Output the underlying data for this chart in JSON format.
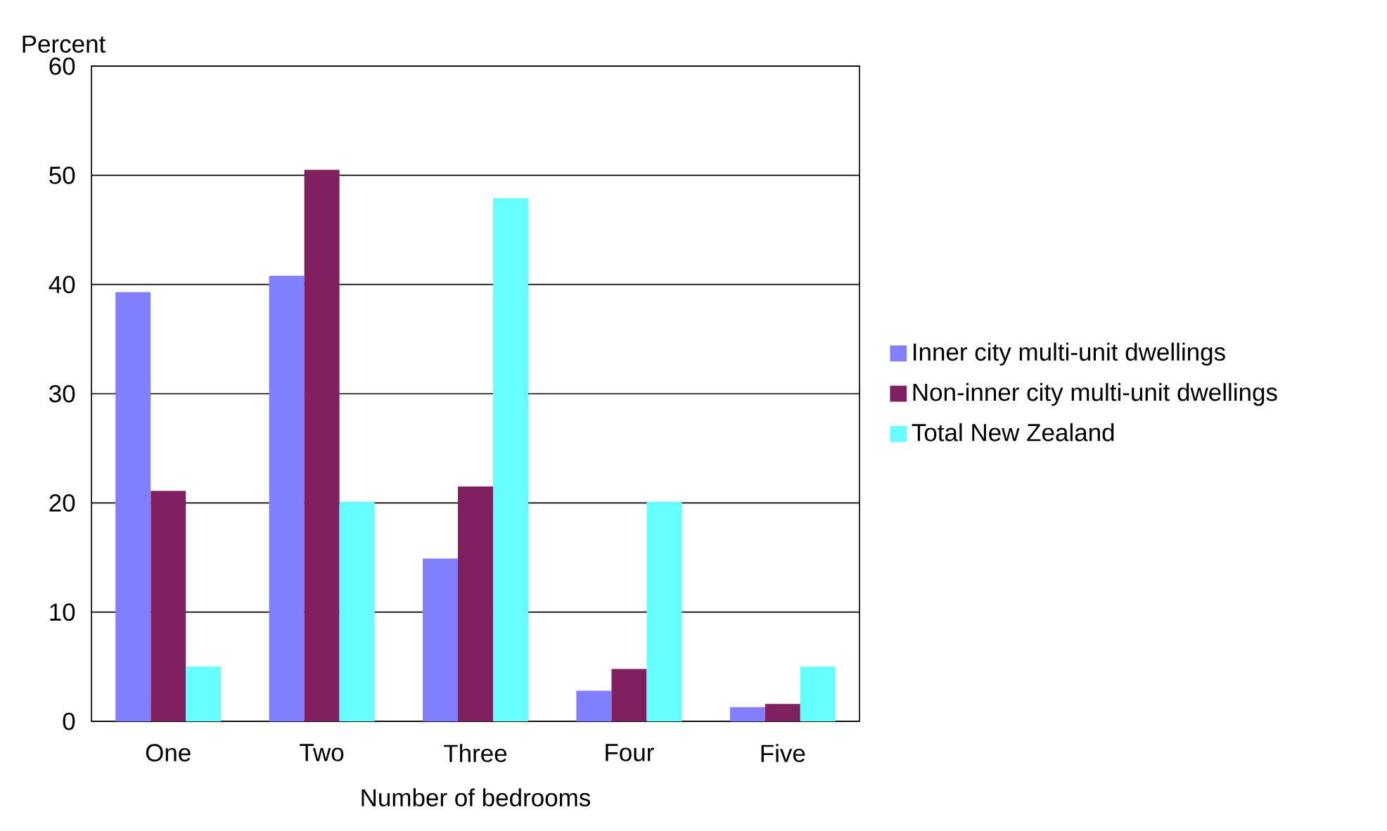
{
  "chart_data": {
    "type": "bar",
    "xlabel": "Number of bedrooms",
    "ylabel": "Percent",
    "categories": [
      "One",
      "Two",
      "Three",
      "Four",
      "Five"
    ],
    "series": [
      {
        "name": "Inner city multi-unit dwellings",
        "color": "#8080ff",
        "values": [
          39.3,
          40.8,
          14.9,
          2.8,
          1.3
        ]
      },
      {
        "name": "Non-inner city multi-unit dwellings",
        "color": "#802060",
        "values": [
          21.1,
          50.5,
          21.5,
          4.8,
          1.6
        ]
      },
      {
        "name": "Total New Zealand",
        "color": "#66ffff",
        "values": [
          5.0,
          20.1,
          47.9,
          20.1,
          5.0
        ]
      }
    ],
    "ylim": [
      0,
      60
    ],
    "yticks": [
      0,
      10,
      20,
      30,
      40,
      50,
      60
    ],
    "grid": "y",
    "legend": "right"
  }
}
